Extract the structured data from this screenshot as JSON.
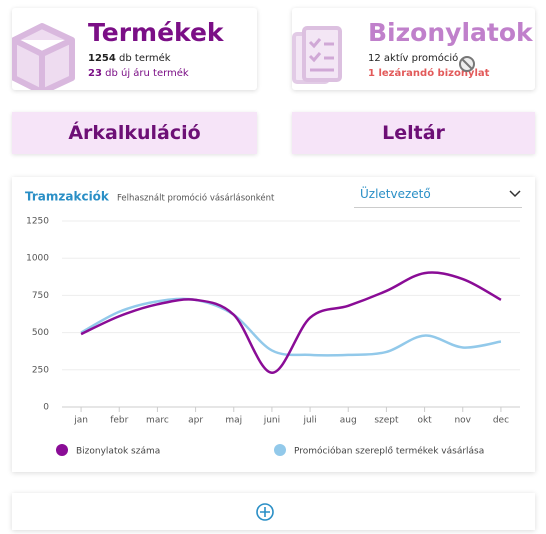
{
  "cards": [
    {
      "title": "Termékek",
      "line1": {
        "count": "1254",
        "text": "db  termék"
      },
      "line2": {
        "count": "23",
        "text": "db új áru termék"
      }
    },
    {
      "title": "Bizonylatok",
      "line1": {
        "count": "12",
        "text": "aktív promóció"
      },
      "line2": {
        "count": "1",
        "text": "lezárandó bizonylat"
      }
    }
  ],
  "buttons": [
    "Árkalkuláció",
    "Leltár"
  ],
  "panel": {
    "dropdown": "Üzletvezető"
  },
  "chart_data": {
    "type": "line",
    "title": "Tramzakciók",
    "subtitle": "Felhasznált promóció vásárlásonként",
    "categories": [
      "jan",
      "febr",
      "marc",
      "apr",
      "maj",
      "juni",
      "juli",
      "aug",
      "szept",
      "okt",
      "nov",
      "dec"
    ],
    "series": [
      {
        "name": "Bizonylatok száma",
        "color": "#8a0c96",
        "values": [
          490,
          610,
          690,
          720,
          620,
          230,
          600,
          680,
          780,
          900,
          860,
          720
        ]
      },
      {
        "name": "Promócióban szereplő termékek vásárlása",
        "color": "#92c9ea",
        "values": [
          500,
          640,
          710,
          720,
          620,
          380,
          350,
          350,
          370,
          480,
          400,
          440
        ]
      }
    ],
    "ylim": [
      0,
      1250
    ],
    "yticks": [
      0,
      250,
      500,
      750,
      1000,
      1250
    ],
    "grid": true
  }
}
